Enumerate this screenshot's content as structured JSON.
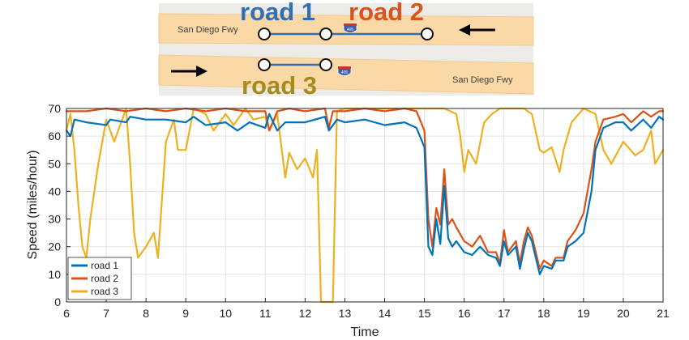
{
  "map_inset": {
    "freeway_label_top": "San Diego Fwy",
    "freeway_label_bottom": "San Diego Fwy",
    "shield_label": "405",
    "road_labels": [
      {
        "name": "road 1",
        "color": "#2f6fb5"
      },
      {
        "name": "road 2",
        "color": "#d9541e"
      },
      {
        "name": "road 3",
        "color": "#a68a1c"
      }
    ],
    "road_band_color": "#fbd9a6",
    "segment_color": "#2f6fb5"
  },
  "chart_data": {
    "type": "line",
    "title": "",
    "xlabel": "Time",
    "ylabel": "Speed (miles/hour)",
    "xlim": [
      6,
      21
    ],
    "ylim": [
      0,
      70
    ],
    "xticks": [
      "6",
      "7",
      "8",
      "9",
      "10",
      "11",
      "12",
      "13",
      "14",
      "15",
      "16",
      "17",
      "18",
      "19",
      "20",
      "21"
    ],
    "yticks": [
      "0",
      "10",
      "20",
      "30",
      "40",
      "50",
      "60",
      "70"
    ],
    "grid": true,
    "legend_position": "bottom-left",
    "series": [
      {
        "name": "road 1",
        "color": "#0072bd",
        "points": [
          [
            6,
            62
          ],
          [
            6.1,
            60
          ],
          [
            6.2,
            66
          ],
          [
            6.5,
            65
          ],
          [
            7,
            64
          ],
          [
            7.1,
            66
          ],
          [
            7.5,
            65
          ],
          [
            7.6,
            67
          ],
          [
            8,
            66
          ],
          [
            8.5,
            66
          ],
          [
            9,
            65
          ],
          [
            9.2,
            67
          ],
          [
            9.5,
            64
          ],
          [
            10,
            65
          ],
          [
            10.3,
            62
          ],
          [
            10.6,
            65
          ],
          [
            11,
            63
          ],
          [
            11.1,
            68
          ],
          [
            11.3,
            62
          ],
          [
            11.5,
            65
          ],
          [
            12,
            65
          ],
          [
            12.5,
            67
          ],
          [
            12.6,
            62
          ],
          [
            12.8,
            66
          ],
          [
            13,
            65
          ],
          [
            13.5,
            66
          ],
          [
            14,
            64
          ],
          [
            14.5,
            65
          ],
          [
            14.8,
            63
          ],
          [
            15,
            56
          ],
          [
            15.1,
            20
          ],
          [
            15.2,
            17
          ],
          [
            15.3,
            30
          ],
          [
            15.4,
            21
          ],
          [
            15.5,
            42
          ],
          [
            15.6,
            23
          ],
          [
            15.7,
            20
          ],
          [
            15.8,
            22
          ],
          [
            16,
            18
          ],
          [
            16.2,
            17
          ],
          [
            16.4,
            20
          ],
          [
            16.6,
            17
          ],
          [
            16.8,
            16
          ],
          [
            16.9,
            13
          ],
          [
            17,
            22
          ],
          [
            17.1,
            17
          ],
          [
            17.3,
            20
          ],
          [
            17.4,
            12
          ],
          [
            17.5,
            19
          ],
          [
            17.6,
            25
          ],
          [
            17.7,
            22
          ],
          [
            17.9,
            10
          ],
          [
            18,
            13
          ],
          [
            18.2,
            12
          ],
          [
            18.3,
            15
          ],
          [
            18.5,
            15
          ],
          [
            18.6,
            20
          ],
          [
            18.8,
            22
          ],
          [
            19,
            25
          ],
          [
            19.2,
            40
          ],
          [
            19.3,
            55
          ],
          [
            19.5,
            63
          ],
          [
            19.8,
            65
          ],
          [
            20,
            65
          ],
          [
            20.2,
            62
          ],
          [
            20.5,
            66
          ],
          [
            20.7,
            63
          ],
          [
            20.9,
            67
          ],
          [
            21,
            66
          ]
        ]
      },
      {
        "name": "road 2",
        "color": "#d95319",
        "points": [
          [
            6,
            69
          ],
          [
            6.5,
            69
          ],
          [
            7,
            70
          ],
          [
            7.5,
            69
          ],
          [
            8,
            70
          ],
          [
            8.5,
            69
          ],
          [
            9,
            70
          ],
          [
            9.5,
            69
          ],
          [
            10,
            70
          ],
          [
            10.5,
            69
          ],
          [
            11,
            69
          ],
          [
            11.1,
            62
          ],
          [
            11.3,
            69
          ],
          [
            11.6,
            70
          ],
          [
            12,
            69
          ],
          [
            12.5,
            70
          ],
          [
            12.6,
            63
          ],
          [
            12.7,
            69
          ],
          [
            13,
            69
          ],
          [
            13.5,
            70
          ],
          [
            14,
            69
          ],
          [
            14.5,
            70
          ],
          [
            14.8,
            69
          ],
          [
            15,
            62
          ],
          [
            15.1,
            30
          ],
          [
            15.2,
            20
          ],
          [
            15.3,
            34
          ],
          [
            15.4,
            28
          ],
          [
            15.5,
            48
          ],
          [
            15.6,
            28
          ],
          [
            15.7,
            30
          ],
          [
            15.8,
            27
          ],
          [
            16,
            22
          ],
          [
            16.2,
            20
          ],
          [
            16.4,
            24
          ],
          [
            16.6,
            18
          ],
          [
            16.8,
            18
          ],
          [
            16.9,
            14
          ],
          [
            17,
            26
          ],
          [
            17.1,
            18
          ],
          [
            17.3,
            22
          ],
          [
            17.4,
            14
          ],
          [
            17.5,
            22
          ],
          [
            17.6,
            27
          ],
          [
            17.7,
            24
          ],
          [
            17.9,
            12
          ],
          [
            18,
            15
          ],
          [
            18.2,
            13
          ],
          [
            18.3,
            16
          ],
          [
            18.5,
            16
          ],
          [
            18.6,
            22
          ],
          [
            18.8,
            26
          ],
          [
            19,
            32
          ],
          [
            19.2,
            48
          ],
          [
            19.3,
            58
          ],
          [
            19.5,
            66
          ],
          [
            19.8,
            67
          ],
          [
            20,
            68
          ],
          [
            20.2,
            65
          ],
          [
            20.5,
            69
          ],
          [
            20.7,
            67
          ],
          [
            20.9,
            69
          ],
          [
            21,
            69
          ]
        ]
      },
      {
        "name": "road 3",
        "color": "#edb120",
        "points": [
          [
            6,
            62
          ],
          [
            6.1,
            68
          ],
          [
            6.2,
            55
          ],
          [
            6.3,
            35
          ],
          [
            6.4,
            20
          ],
          [
            6.5,
            16
          ],
          [
            6.6,
            30
          ],
          [
            6.8,
            50
          ],
          [
            7,
            66
          ],
          [
            7.2,
            58
          ],
          [
            7.5,
            70
          ],
          [
            7.6,
            50
          ],
          [
            7.7,
            25
          ],
          [
            7.8,
            16
          ],
          [
            8,
            20
          ],
          [
            8.2,
            25
          ],
          [
            8.3,
            16
          ],
          [
            8.5,
            58
          ],
          [
            8.7,
            66
          ],
          [
            8.8,
            55
          ],
          [
            9,
            55
          ],
          [
            9.2,
            70
          ],
          [
            9.5,
            68
          ],
          [
            9.7,
            62
          ],
          [
            10,
            68
          ],
          [
            10.2,
            64
          ],
          [
            10.5,
            70
          ],
          [
            10.7,
            66
          ],
          [
            11,
            67
          ],
          [
            11.1,
            62
          ],
          [
            11.3,
            68
          ],
          [
            11.5,
            45
          ],
          [
            11.6,
            54
          ],
          [
            11.8,
            48
          ],
          [
            12,
            52
          ],
          [
            12.2,
            45
          ],
          [
            12.3,
            55
          ],
          [
            12.4,
            0
          ],
          [
            12.6,
            0
          ],
          [
            12.7,
            0
          ],
          [
            12.8,
            69
          ],
          [
            13,
            70
          ],
          [
            13.5,
            70
          ],
          [
            14,
            70
          ],
          [
            14.5,
            70
          ],
          [
            15,
            70
          ],
          [
            15.5,
            70
          ],
          [
            15.8,
            68
          ],
          [
            15.9,
            60
          ],
          [
            16,
            47
          ],
          [
            16.1,
            55
          ],
          [
            16.3,
            50
          ],
          [
            16.5,
            65
          ],
          [
            16.7,
            68
          ],
          [
            16.9,
            70
          ],
          [
            17.5,
            70
          ],
          [
            17.7,
            68
          ],
          [
            17.9,
            55
          ],
          [
            18,
            54
          ],
          [
            18.2,
            56
          ],
          [
            18.4,
            47
          ],
          [
            18.5,
            55
          ],
          [
            18.7,
            65
          ],
          [
            19,
            70
          ],
          [
            19.3,
            68
          ],
          [
            19.5,
            55
          ],
          [
            19.7,
            50
          ],
          [
            20,
            58
          ],
          [
            20.3,
            53
          ],
          [
            20.5,
            55
          ],
          [
            20.7,
            62
          ],
          [
            20.8,
            50
          ],
          [
            21,
            55
          ]
        ]
      }
    ]
  }
}
